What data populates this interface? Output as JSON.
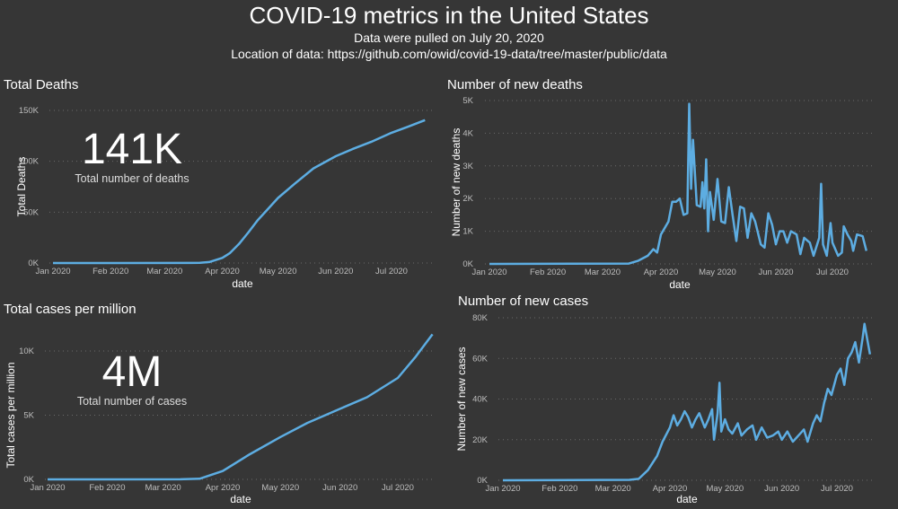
{
  "header": {
    "title": "COVID-19 metrics in the United States",
    "subtitle1": "Data were pulled on July 20, 2020",
    "subtitle2": "Location of data: https://github.com/owid/covid-19-data/tree/master/public/data"
  },
  "kpis": {
    "deaths": {
      "value": "141K",
      "label": "Total number of deaths"
    },
    "cases": {
      "value": "4M",
      "label": "Total number of cases"
    }
  },
  "line_color": "#5dade2",
  "chart_data": [
    {
      "type": "line",
      "title": "Total Deaths",
      "xlabel": "date",
      "ylabel": "Total Deaths",
      "xticks": [
        "Jan 2020",
        "Feb 2020",
        "Mar 2020",
        "Apr 2020",
        "May 2020",
        "Jun 2020",
        "Jul 2020"
      ],
      "yticks": [
        "0K",
        "50K",
        "100K",
        "150K"
      ],
      "ylim": [
        0,
        150000
      ],
      "grid": true,
      "x": [
        "2020-01-01",
        "2020-03-15",
        "2020-03-20",
        "2020-03-25",
        "2020-04-01",
        "2020-04-05",
        "2020-04-10",
        "2020-04-15",
        "2020-04-20",
        "2020-04-25",
        "2020-05-01",
        "2020-05-10",
        "2020-05-20",
        "2020-06-01",
        "2020-06-10",
        "2020-06-20",
        "2020-07-01",
        "2020-07-10",
        "2020-07-19"
      ],
      "y": [
        0,
        60,
        200,
        1000,
        5000,
        9600,
        18700,
        30000,
        42000,
        52000,
        64000,
        78000,
        93000,
        105000,
        112000,
        119000,
        128000,
        134000,
        140500
      ]
    },
    {
      "type": "line",
      "title": "Number of new deaths",
      "xlabel": "date",
      "ylabel": "Number of new deaths",
      "xticks": [
        "Jan 2020",
        "Feb 2020",
        "Mar 2020",
        "Apr 2020",
        "May 2020",
        "Jun 2020",
        "Jul 2020"
      ],
      "yticks": [
        "0K",
        "1K",
        "2K",
        "3K",
        "4K",
        "5K"
      ],
      "ylim": [
        0,
        5000
      ],
      "grid": true,
      "x": [
        "2020-01-01",
        "2020-03-15",
        "2020-03-20",
        "2020-03-25",
        "2020-03-28",
        "2020-03-30",
        "2020-04-01",
        "2020-04-03",
        "2020-04-05",
        "2020-04-07",
        "2020-04-09",
        "2020-04-11",
        "2020-04-13",
        "2020-04-15",
        "2020-04-16",
        "2020-04-17",
        "2020-04-18",
        "2020-04-20",
        "2020-04-22",
        "2020-04-23",
        "2020-04-24",
        "2020-04-25",
        "2020-04-26",
        "2020-04-27",
        "2020-04-29",
        "2020-05-01",
        "2020-05-03",
        "2020-05-05",
        "2020-05-07",
        "2020-05-09",
        "2020-05-11",
        "2020-05-13",
        "2020-05-15",
        "2020-05-17",
        "2020-05-19",
        "2020-05-21",
        "2020-05-24",
        "2020-05-26",
        "2020-05-28",
        "2020-05-30",
        "2020-06-01",
        "2020-06-03",
        "2020-06-05",
        "2020-06-07",
        "2020-06-09",
        "2020-06-12",
        "2020-06-14",
        "2020-06-16",
        "2020-06-19",
        "2020-06-21",
        "2020-06-24",
        "2020-06-25",
        "2020-06-26",
        "2020-06-28",
        "2020-06-30",
        "2020-07-01",
        "2020-07-04",
        "2020-07-06",
        "2020-07-07",
        "2020-07-09",
        "2020-07-11",
        "2020-07-12",
        "2020-07-14",
        "2020-07-17",
        "2020-07-19"
      ],
      "y": [
        0,
        10,
        100,
        250,
        450,
        350,
        900,
        1100,
        1300,
        1900,
        1900,
        2000,
        1500,
        1550,
        4900,
        2300,
        3800,
        1800,
        1750,
        2500,
        1700,
        3200,
        1000,
        2200,
        1350,
        2600,
        1300,
        1250,
        2350,
        1500,
        700,
        1750,
        1700,
        800,
        1550,
        1300,
        600,
        500,
        1550,
        1200,
        600,
        1000,
        1000,
        650,
        1000,
        900,
        300,
        800,
        650,
        250,
        800,
        2450,
        600,
        250,
        1250,
        650,
        250,
        350,
        1150,
        900,
        700,
        400,
        900,
        850,
        400
      ]
    },
    {
      "type": "line",
      "title": "Total cases per million",
      "xlabel": "date",
      "ylabel": "Total cases per million",
      "xticks": [
        "Jan 2020",
        "Feb 2020",
        "Mar 2020",
        "Apr 2020",
        "May 2020",
        "Jun 2020",
        "Jul 2020"
      ],
      "yticks": [
        "0K",
        "5K",
        "10K"
      ],
      "ylim": [
        0,
        10000
      ],
      "grid": true,
      "x": [
        "2020-01-01",
        "2020-03-10",
        "2020-03-20",
        "2020-04-01",
        "2020-04-15",
        "2020-05-01",
        "2020-05-15",
        "2020-06-01",
        "2020-06-15",
        "2020-07-01",
        "2020-07-10",
        "2020-07-19"
      ],
      "y": [
        0,
        5,
        50,
        650,
        1950,
        3300,
        4400,
        5500,
        6400,
        7900,
        9500,
        11300
      ]
    },
    {
      "type": "line",
      "title": "Number of new cases",
      "xlabel": "date",
      "ylabel": "Number of new cases",
      "xticks": [
        "Jan 2020",
        "Feb 2020",
        "Mar 2020",
        "Apr 2020",
        "May 2020",
        "Jun 2020",
        "Jul 2020"
      ],
      "yticks": [
        "0K",
        "20K",
        "40K",
        "60K",
        "80K"
      ],
      "ylim": [
        0,
        80000
      ],
      "grid": true,
      "x": [
        "2020-01-01",
        "2020-03-10",
        "2020-03-15",
        "2020-03-20",
        "2020-03-25",
        "2020-03-28",
        "2020-04-01",
        "2020-04-03",
        "2020-04-05",
        "2020-04-07",
        "2020-04-09",
        "2020-04-11",
        "2020-04-13",
        "2020-04-15",
        "2020-04-17",
        "2020-04-20",
        "2020-04-22",
        "2020-04-24",
        "2020-04-25",
        "2020-04-27",
        "2020-04-28",
        "2020-04-29",
        "2020-05-01",
        "2020-05-03",
        "2020-05-05",
        "2020-05-08",
        "2020-05-10",
        "2020-05-13",
        "2020-05-16",
        "2020-05-18",
        "2020-05-21",
        "2020-05-24",
        "2020-05-27",
        "2020-05-30",
        "2020-06-01",
        "2020-06-04",
        "2020-06-07",
        "2020-06-10",
        "2020-06-13",
        "2020-06-15",
        "2020-06-18",
        "2020-06-20",
        "2020-06-22",
        "2020-06-24",
        "2020-06-26",
        "2020-06-28",
        "2020-07-01",
        "2020-07-03",
        "2020-07-05",
        "2020-07-07",
        "2020-07-09",
        "2020-07-11",
        "2020-07-13",
        "2020-07-15",
        "2020-07-16",
        "2020-07-17",
        "2020-07-19"
      ],
      "y": [
        0,
        200,
        700,
        5000,
        12000,
        19000,
        26000,
        32000,
        27000,
        30000,
        34000,
        31000,
        26000,
        30000,
        33000,
        26000,
        30000,
        35000,
        20000,
        33000,
        48000,
        24000,
        30000,
        25000,
        23000,
        28000,
        22000,
        25000,
        27000,
        20000,
        26000,
        21000,
        22000,
        24000,
        20000,
        24000,
        19000,
        22000,
        25000,
        19000,
        28000,
        32000,
        29000,
        38000,
        45000,
        42000,
        52000,
        55000,
        47000,
        60000,
        63000,
        68000,
        58000,
        70000,
        77000,
        72000,
        62000
      ]
    }
  ]
}
